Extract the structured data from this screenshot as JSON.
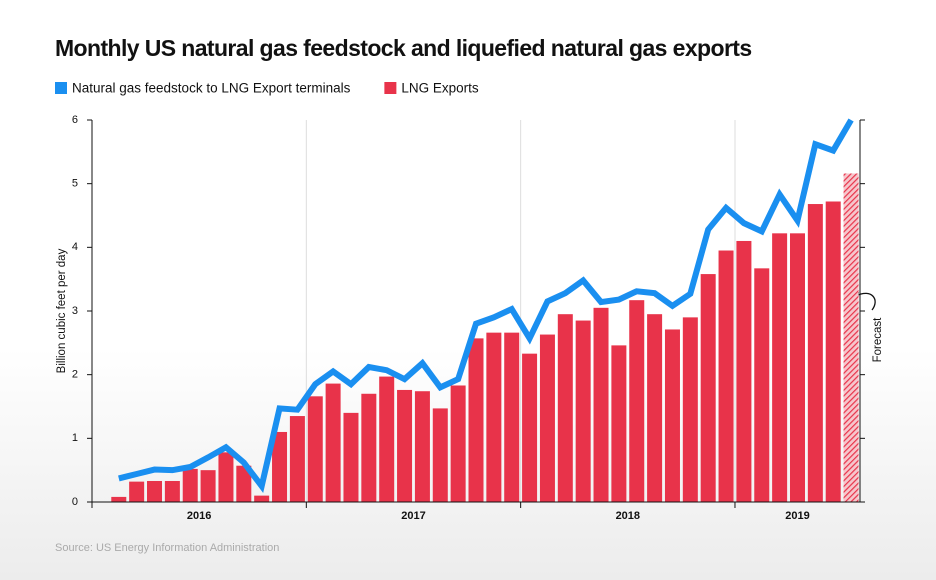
{
  "chart_data": {
    "type": "bar_line",
    "title": "Monthly US natural gas feedstock and liquefied natural gas exports",
    "y_label": "Billion cubic feet per day",
    "source": "Source: US Energy Information Administration",
    "forecast_label": "Forecast",
    "forecast_points": 1,
    "categories": [
      null,
      null,
      null,
      null,
      null,
      null,
      null,
      null,
      null,
      null,
      null,
      null,
      null,
      null,
      null,
      null,
      null,
      null,
      null,
      null,
      null,
      null,
      null,
      null,
      null,
      null,
      null,
      null,
      null,
      null,
      null,
      null,
      null,
      null,
      null,
      null,
      null,
      null,
      null,
      null,
      null,
      null
    ],
    "x_labels": [
      "2016",
      "2017",
      "2018",
      "2019"
    ],
    "ylim": [
      0,
      6
    ],
    "yticks": [
      0,
      1,
      2,
      3,
      4,
      5,
      6
    ],
    "series": [
      {
        "name": "Natural gas feedstock to LNG Export terminals",
        "kind": "line",
        "color": "#1a8ff0",
        "values": [
          0.37,
          0.44,
          0.51,
          0.5,
          0.55,
          0.7,
          0.86,
          0.62,
          0.25,
          1.47,
          1.45,
          1.85,
          2.05,
          1.85,
          2.12,
          2.07,
          1.93,
          2.18,
          1.8,
          1.93,
          2.8,
          2.9,
          3.03,
          2.57,
          3.15,
          3.28,
          3.48,
          3.14,
          3.18,
          3.31,
          3.28,
          3.08,
          3.27,
          4.28,
          4.62,
          4.38,
          4.25,
          4.83,
          4.42,
          5.62,
          5.52,
          6.0
        ]
      },
      {
        "name": "LNG Exports",
        "kind": "bar",
        "color": "#e8334a",
        "values": [
          0.08,
          0.32,
          0.33,
          0.33,
          0.52,
          0.5,
          0.78,
          0.57,
          0.1,
          1.1,
          1.35,
          1.66,
          1.86,
          1.4,
          1.7,
          1.97,
          1.76,
          1.74,
          1.47,
          1.83,
          2.57,
          2.66,
          2.66,
          2.33,
          2.63,
          2.95,
          2.85,
          3.05,
          2.46,
          3.17,
          2.95,
          2.71,
          2.9,
          3.58,
          3.95,
          4.1,
          3.67,
          4.22,
          4.22,
          4.68,
          4.72,
          5.16
        ]
      }
    ]
  }
}
